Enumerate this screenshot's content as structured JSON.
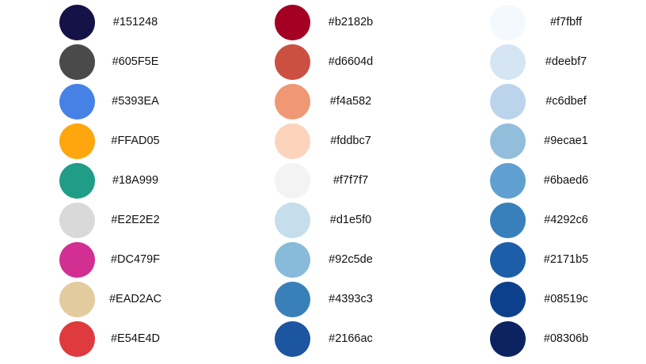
{
  "columns": [
    {
      "swatches": [
        {
          "label": "#151248",
          "color": "#151248"
        },
        {
          "label": "#605F5E",
          "color": "#4a4a4a"
        },
        {
          "label": "#5393EA",
          "color": "#4682e6"
        },
        {
          "label": "#FFAD05",
          "color": "#ffa50d"
        },
        {
          "label": "#18A999",
          "color": "#1f9d87"
        },
        {
          "label": "#E2E2E2",
          "color": "#d9d9d9"
        },
        {
          "label": "#DC479F",
          "color": "#d12f92"
        },
        {
          "label": "#EAD2AC",
          "color": "#e3cba0"
        },
        {
          "label": "#E54E4D",
          "color": "#df3a3e"
        }
      ]
    },
    {
      "swatches": [
        {
          "label": "#b2182b",
          "color": "#a30024"
        },
        {
          "label": "#d6604d",
          "color": "#cc5041"
        },
        {
          "label": "#f4a582",
          "color": "#f09874"
        },
        {
          "label": "#fddbc7",
          "color": "#fcd4bb"
        },
        {
          "label": "#f7f7f7",
          "color": "#f3f3f3"
        },
        {
          "label": "#d1e5f0",
          "color": "#c6deeb"
        },
        {
          "label": "#92c5de",
          "color": "#87bbd9"
        },
        {
          "label": "#4393c3",
          "color": "#3a80b8"
        },
        {
          "label": "#2166ac",
          "color": "#1c55a0"
        }
      ]
    },
    {
      "swatches": [
        {
          "label": "#f7fbff",
          "color": "#f4f9fe"
        },
        {
          "label": "#deebf7",
          "color": "#d5e5f4"
        },
        {
          "label": "#c6dbef",
          "color": "#bcd3ec"
        },
        {
          "label": "#9ecae1",
          "color": "#92bedc"
        },
        {
          "label": "#6baed6",
          "color": "#5fa0d0"
        },
        {
          "label": "#4292c6",
          "color": "#3780bb"
        },
        {
          "label": "#2171b5",
          "color": "#1d5ea8"
        },
        {
          "label": "#08519c",
          "color": "#0c408c"
        },
        {
          "label": "#08306b",
          "color": "#0b2460"
        }
      ]
    }
  ]
}
